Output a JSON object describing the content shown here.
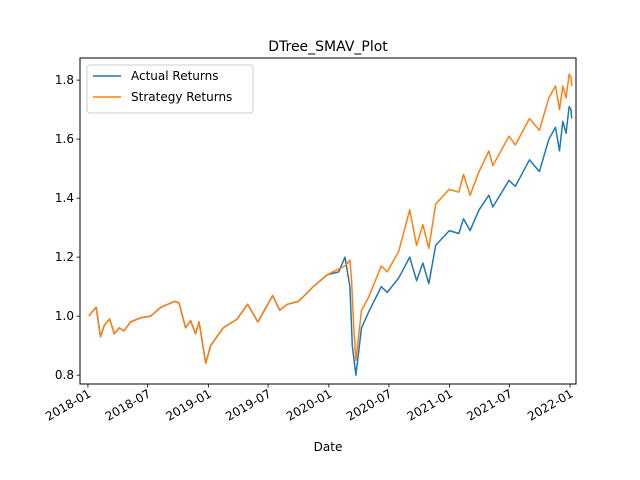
{
  "chart_data": {
    "type": "line",
    "title": "DTree_SMAV_Plot",
    "xlabel": "Date",
    "ylabel": "",
    "xlim": [
      "2017-12-08",
      "2022-01-19"
    ],
    "ylim": [
      0.77,
      1.875
    ],
    "x_ticks": [
      "2018-01",
      "2018-07",
      "2019-01",
      "2019-07",
      "2020-01",
      "2020-07",
      "2021-01",
      "2021-07",
      "2022-01"
    ],
    "y_ticks": [
      "0.8",
      "1.0",
      "1.2",
      "1.4",
      "1.6",
      "1.8"
    ],
    "legend_position": "top-left",
    "grid": false,
    "series": [
      {
        "name": "Actual Returns",
        "color": "#1f77b4",
        "points": [
          [
            "2018-01-04",
            1.0
          ],
          [
            "2018-01-18",
            1.02
          ],
          [
            "2018-01-26",
            1.03
          ],
          [
            "2018-02-08",
            0.93
          ],
          [
            "2018-02-20",
            0.97
          ],
          [
            "2018-03-08",
            0.99
          ],
          [
            "2018-03-22",
            0.94
          ],
          [
            "2018-04-06",
            0.96
          ],
          [
            "2018-04-20",
            0.95
          ],
          [
            "2018-05-10",
            0.98
          ],
          [
            "2018-06-12",
            0.995
          ],
          [
            "2018-07-10",
            1.0
          ],
          [
            "2018-08-10",
            1.03
          ],
          [
            "2018-09-20",
            1.05
          ],
          [
            "2018-10-04",
            1.045
          ],
          [
            "2018-10-24",
            0.96
          ],
          [
            "2018-11-08",
            0.985
          ],
          [
            "2018-11-23",
            0.94
          ],
          [
            "2018-12-04",
            0.98
          ],
          [
            "2018-12-24",
            0.84
          ],
          [
            "2019-01-08",
            0.9
          ],
          [
            "2019-02-15",
            0.96
          ],
          [
            "2019-03-29",
            0.99
          ],
          [
            "2019-04-30",
            1.04
          ],
          [
            "2019-05-31",
            0.98
          ],
          [
            "2019-07-15",
            1.07
          ],
          [
            "2019-08-05",
            1.02
          ],
          [
            "2019-08-28",
            1.04
          ],
          [
            "2019-10-01",
            1.05
          ],
          [
            "2019-11-15",
            1.1
          ],
          [
            "2019-12-27",
            1.14
          ],
          [
            "2020-01-31",
            1.15
          ],
          [
            "2020-02-19",
            1.2
          ],
          [
            "2020-03-05",
            1.1
          ],
          [
            "2020-03-12",
            0.9
          ],
          [
            "2020-03-23",
            0.8
          ],
          [
            "2020-04-09",
            0.96
          ],
          [
            "2020-04-29",
            1.01
          ],
          [
            "2020-06-08",
            1.1
          ],
          [
            "2020-06-26",
            1.08
          ],
          [
            "2020-07-31",
            1.13
          ],
          [
            "2020-09-02",
            1.2
          ],
          [
            "2020-09-23",
            1.12
          ],
          [
            "2020-10-12",
            1.18
          ],
          [
            "2020-10-30",
            1.11
          ],
          [
            "2020-11-20",
            1.24
          ],
          [
            "2020-12-31",
            1.29
          ],
          [
            "2021-01-29",
            1.28
          ],
          [
            "2021-02-12",
            1.33
          ],
          [
            "2021-03-04",
            1.29
          ],
          [
            "2021-03-31",
            1.36
          ],
          [
            "2021-04-30",
            1.41
          ],
          [
            "2021-05-12",
            1.37
          ],
          [
            "2021-06-30",
            1.46
          ],
          [
            "2021-07-19",
            1.44
          ],
          [
            "2021-08-31",
            1.53
          ],
          [
            "2021-09-30",
            1.49
          ],
          [
            "2021-10-29",
            1.6
          ],
          [
            "2021-11-18",
            1.64
          ],
          [
            "2021-11-30",
            1.56
          ],
          [
            "2021-12-10",
            1.66
          ],
          [
            "2021-12-20",
            1.62
          ],
          [
            "2021-12-29",
            1.71
          ],
          [
            "2022-01-04",
            1.7
          ],
          [
            "2022-01-06",
            1.67
          ]
        ]
      },
      {
        "name": "Strategy Returns",
        "color": "#ff7f0e",
        "points": [
          [
            "2018-01-04",
            1.0
          ],
          [
            "2018-01-18",
            1.02
          ],
          [
            "2018-01-26",
            1.03
          ],
          [
            "2018-02-08",
            0.93
          ],
          [
            "2018-02-20",
            0.97
          ],
          [
            "2018-03-08",
            0.99
          ],
          [
            "2018-03-22",
            0.94
          ],
          [
            "2018-04-06",
            0.96
          ],
          [
            "2018-04-20",
            0.95
          ],
          [
            "2018-05-10",
            0.98
          ],
          [
            "2018-06-12",
            0.995
          ],
          [
            "2018-07-10",
            1.0
          ],
          [
            "2018-08-10",
            1.03
          ],
          [
            "2018-09-20",
            1.05
          ],
          [
            "2018-10-04",
            1.045
          ],
          [
            "2018-10-24",
            0.96
          ],
          [
            "2018-11-08",
            0.985
          ],
          [
            "2018-11-23",
            0.94
          ],
          [
            "2018-12-04",
            0.98
          ],
          [
            "2018-12-24",
            0.84
          ],
          [
            "2019-01-08",
            0.9
          ],
          [
            "2019-02-15",
            0.96
          ],
          [
            "2019-03-29",
            0.99
          ],
          [
            "2019-04-30",
            1.04
          ],
          [
            "2019-05-31",
            0.98
          ],
          [
            "2019-07-15",
            1.07
          ],
          [
            "2019-08-05",
            1.02
          ],
          [
            "2019-08-28",
            1.04
          ],
          [
            "2019-10-01",
            1.05
          ],
          [
            "2019-11-15",
            1.1
          ],
          [
            "2019-12-27",
            1.14
          ],
          [
            "2020-01-31",
            1.16
          ],
          [
            "2020-02-19",
            1.17
          ],
          [
            "2020-03-05",
            1.19
          ],
          [
            "2020-03-10",
            1.12
          ],
          [
            "2020-03-16",
            0.97
          ],
          [
            "2020-03-23",
            0.85
          ],
          [
            "2020-04-09",
            1.02
          ],
          [
            "2020-04-29",
            1.06
          ],
          [
            "2020-06-08",
            1.17
          ],
          [
            "2020-06-26",
            1.15
          ],
          [
            "2020-07-31",
            1.22
          ],
          [
            "2020-09-02",
            1.36
          ],
          [
            "2020-09-23",
            1.24
          ],
          [
            "2020-10-12",
            1.31
          ],
          [
            "2020-10-30",
            1.23
          ],
          [
            "2020-11-20",
            1.38
          ],
          [
            "2020-12-31",
            1.43
          ],
          [
            "2021-01-29",
            1.42
          ],
          [
            "2021-02-12",
            1.48
          ],
          [
            "2021-03-04",
            1.41
          ],
          [
            "2021-03-31",
            1.49
          ],
          [
            "2021-04-30",
            1.56
          ],
          [
            "2021-05-12",
            1.51
          ],
          [
            "2021-06-30",
            1.61
          ],
          [
            "2021-07-19",
            1.58
          ],
          [
            "2021-08-31",
            1.67
          ],
          [
            "2021-09-30",
            1.63
          ],
          [
            "2021-10-29",
            1.74
          ],
          [
            "2021-11-18",
            1.78
          ],
          [
            "2021-11-30",
            1.7
          ],
          [
            "2021-12-10",
            1.78
          ],
          [
            "2021-12-20",
            1.74
          ],
          [
            "2021-12-29",
            1.82
          ],
          [
            "2022-01-04",
            1.81
          ],
          [
            "2022-01-06",
            1.78
          ]
        ]
      }
    ]
  }
}
